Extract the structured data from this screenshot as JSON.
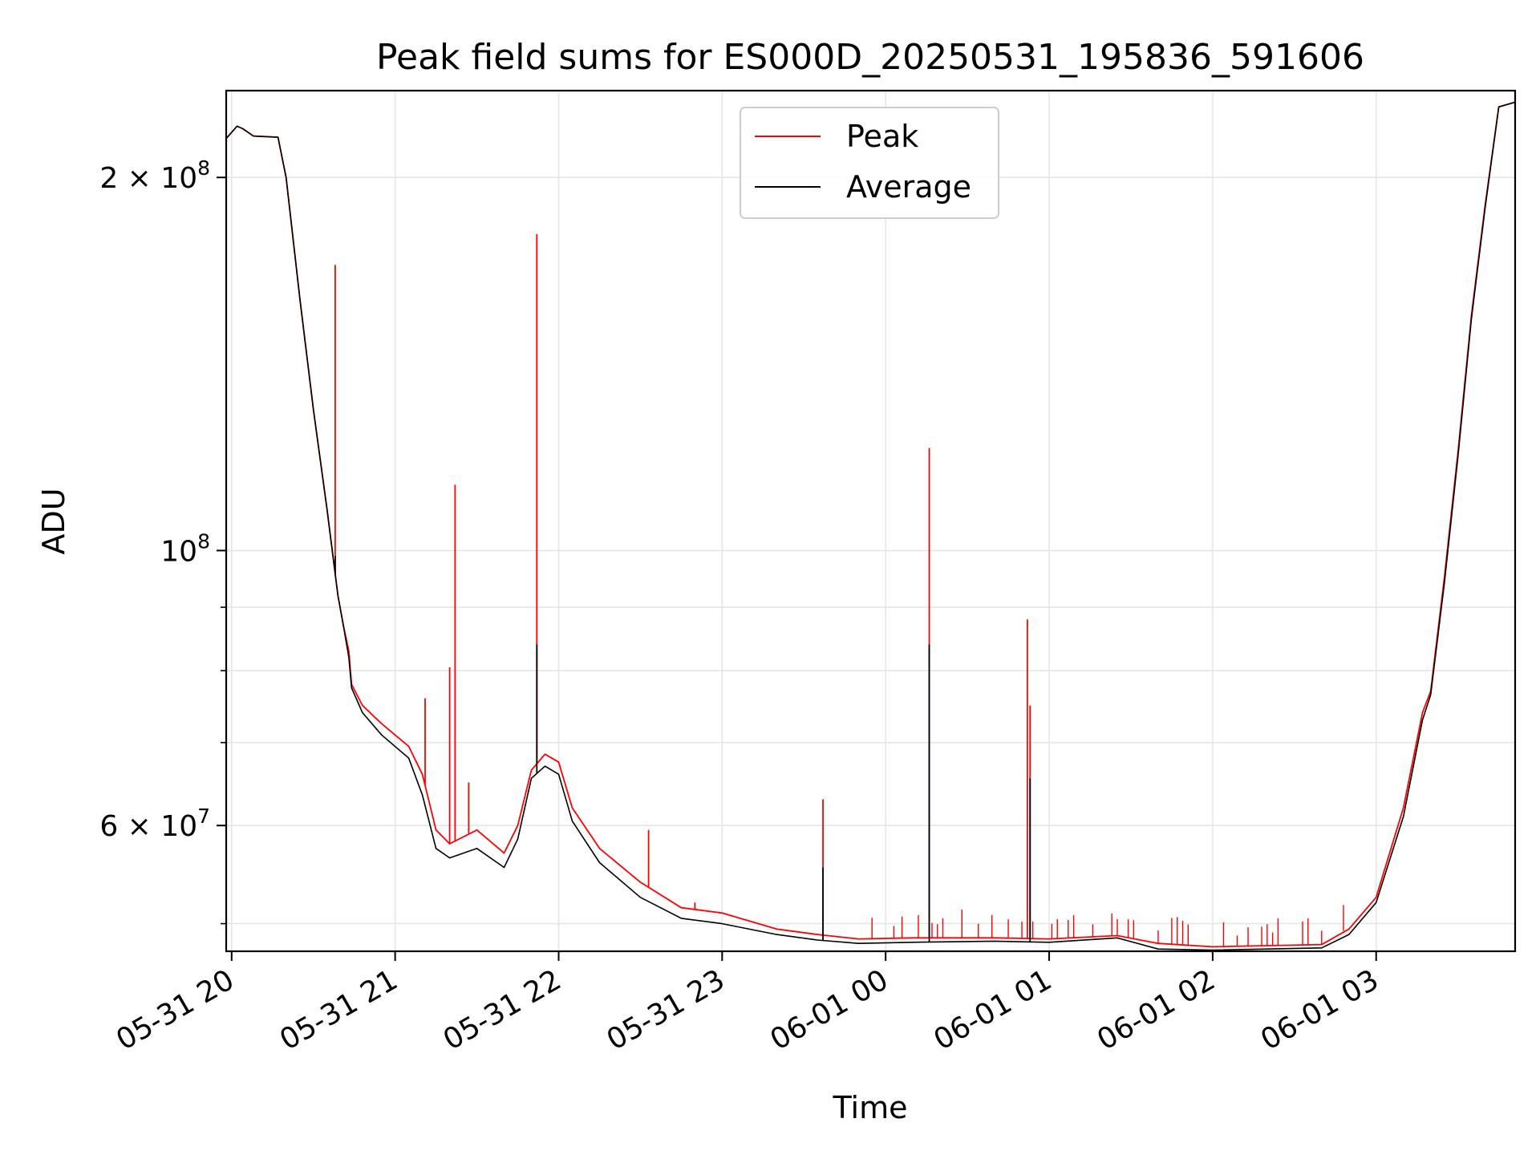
{
  "chart_data": {
    "type": "line",
    "title": "Peak field sums for ES000D_20250531_195836_591606",
    "xlabel": "Time",
    "ylabel": "ADU",
    "y_scale": "log",
    "grid": true,
    "legend_placement": "upper center",
    "xlim": [
      "2025-05-31 19:58",
      "2025-06-01 03:51"
    ],
    "ylim": [
      47500000,
      235000000
    ],
    "x_ticks": [
      {
        "t": "2025-05-31 20:00",
        "label": "05-31 20"
      },
      {
        "t": "2025-05-31 21:00",
        "label": "05-31 21"
      },
      {
        "t": "2025-05-31 22:00",
        "label": "05-31 22"
      },
      {
        "t": "2025-05-31 23:00",
        "label": "05-31 23"
      },
      {
        "t": "2025-06-01 00:00",
        "label": "06-01 00"
      },
      {
        "t": "2025-06-01 01:00",
        "label": "06-01 01"
      },
      {
        "t": "2025-06-01 02:00",
        "label": "06-01 02"
      },
      {
        "t": "2025-06-01 03:00",
        "label": "06-01 03"
      }
    ],
    "y_ticks_major": [
      {
        "v": 200000000,
        "base": "2 × 10",
        "exp": "8"
      },
      {
        "v": 100000000,
        "base": "10",
        "exp": "8"
      },
      {
        "v": 60000000,
        "base": "6 × 10",
        "exp": "7"
      }
    ],
    "y_ticks_minor": [
      50000000,
      70000000,
      80000000,
      90000000
    ],
    "series": [
      {
        "name": "Peak",
        "color": "#ff0000",
        "points": [
          [
            "2025-05-31 19:58",
            215000000
          ],
          [
            "2025-05-31 20:02",
            220000000
          ],
          [
            "2025-05-31 20:04",
            219000000
          ],
          [
            "2025-05-31 20:08",
            216000000
          ],
          [
            "2025-05-31 20:17",
            215500000
          ],
          [
            "2025-05-31 20:20",
            200000000
          ],
          [
            "2025-05-31 20:25",
            160000000
          ],
          [
            "2025-05-31 20:30",
            130000000
          ],
          [
            "2025-05-31 20:35",
            108000000
          ],
          [
            "2025-05-31 20:39",
            92000000
          ],
          [
            "2025-05-31 20:41",
            87000000
          ],
          [
            "2025-05-31 20:43",
            83000000
          ],
          [
            "2025-05-31 20:44",
            78000000
          ],
          [
            "2025-05-31 20:48",
            75000000
          ],
          [
            "2025-05-31 20:55",
            72500000
          ],
          [
            "2025-05-31 21:05",
            69500000
          ],
          [
            "2025-05-31 21:10",
            66000000
          ],
          [
            "2025-05-31 21:15",
            59500000
          ],
          [
            "2025-05-31 21:20",
            58000000
          ],
          [
            "2025-05-31 21:30",
            59500000
          ],
          [
            "2025-05-31 21:40",
            57000000
          ],
          [
            "2025-05-31 21:45",
            60000000
          ],
          [
            "2025-05-31 21:50",
            66500000
          ],
          [
            "2025-05-31 21:55",
            68500000
          ],
          [
            "2025-05-31 22:00",
            67500000
          ],
          [
            "2025-05-31 22:05",
            62000000
          ],
          [
            "2025-05-31 22:15",
            57500000
          ],
          [
            "2025-05-31 22:30",
            54000000
          ],
          [
            "2025-05-31 22:45",
            51500000
          ],
          [
            "2025-05-31 23:00",
            51000000
          ],
          [
            "2025-05-31 23:20",
            49500000
          ],
          [
            "2025-05-31 23:35",
            49000000
          ],
          [
            "2025-05-31 23:50",
            48600000
          ],
          [
            "2025-06-01 00:10",
            48700000
          ],
          [
            "2025-06-01 00:40",
            48700000
          ],
          [
            "2025-06-01 01:00",
            48600000
          ],
          [
            "2025-06-01 01:25",
            48900000
          ],
          [
            "2025-06-01 01:40",
            48200000
          ],
          [
            "2025-06-01 02:00",
            47900000
          ],
          [
            "2025-06-01 02:40",
            48100000
          ],
          [
            "2025-06-01 02:50",
            49500000
          ],
          [
            "2025-06-01 03:00",
            52500000
          ],
          [
            "2025-06-01 03:10",
            62000000
          ],
          [
            "2025-06-01 03:17",
            74000000
          ],
          [
            "2025-06-01 03:20",
            77000000
          ],
          [
            "2025-06-01 03:25",
            95000000
          ],
          [
            "2025-06-01 03:30",
            120000000
          ],
          [
            "2025-06-01 03:35",
            155000000
          ],
          [
            "2025-06-01 03:40",
            190000000
          ],
          [
            "2025-06-01 03:45",
            228000000
          ],
          [
            "2025-06-01 03:51",
            230000000
          ]
        ],
        "spikes": [
          [
            "2025-05-31 20:38",
            170000000
          ],
          [
            "2025-05-31 21:11",
            76000000
          ],
          [
            "2025-05-31 21:20",
            80500000
          ],
          [
            "2025-05-31 21:22",
            113000000
          ],
          [
            "2025-05-31 21:27",
            65000000
          ],
          [
            "2025-05-31 21:52",
            180000000
          ],
          [
            "2025-05-31 22:33",
            59500000
          ],
          [
            "2025-05-31 22:50",
            52000000
          ],
          [
            "2025-05-31 23:37",
            63000000
          ],
          [
            "2025-06-01 00:16",
            121000000
          ],
          [
            "2025-06-01 00:52",
            88000000
          ],
          [
            "2025-06-01 00:53",
            75000000
          ]
        ]
      },
      {
        "name": "Average",
        "color": "#000000",
        "points": [
          [
            "2025-05-31 19:58",
            215000000
          ],
          [
            "2025-05-31 20:02",
            220000000
          ],
          [
            "2025-05-31 20:04",
            219000000
          ],
          [
            "2025-05-31 20:08",
            216000000
          ],
          [
            "2025-05-31 20:17",
            215500000
          ],
          [
            "2025-05-31 20:20",
            200000000
          ],
          [
            "2025-05-31 20:25",
            160000000
          ],
          [
            "2025-05-31 20:30",
            130000000
          ],
          [
            "2025-05-31 20:35",
            108000000
          ],
          [
            "2025-05-31 20:39",
            92000000
          ],
          [
            "2025-05-31 20:41",
            87000000
          ],
          [
            "2025-05-31 20:43",
            82000000
          ],
          [
            "2025-05-31 20:44",
            77500000
          ],
          [
            "2025-05-31 20:48",
            74000000
          ],
          [
            "2025-05-31 20:55",
            71000000
          ],
          [
            "2025-05-31 21:05",
            68000000
          ],
          [
            "2025-05-31 21:10",
            63500000
          ],
          [
            "2025-05-31 21:15",
            57500000
          ],
          [
            "2025-05-31 21:20",
            56500000
          ],
          [
            "2025-05-31 21:30",
            57500000
          ],
          [
            "2025-05-31 21:40",
            55500000
          ],
          [
            "2025-05-31 21:45",
            58500000
          ],
          [
            "2025-05-31 21:50",
            65500000
          ],
          [
            "2025-05-31 21:55",
            67000000
          ],
          [
            "2025-05-31 22:00",
            66000000
          ],
          [
            "2025-05-31 22:05",
            60500000
          ],
          [
            "2025-05-31 22:15",
            56000000
          ],
          [
            "2025-05-31 22:30",
            52500000
          ],
          [
            "2025-05-31 22:45",
            50500000
          ],
          [
            "2025-05-31 23:00",
            50000000
          ],
          [
            "2025-05-31 23:20",
            49000000
          ],
          [
            "2025-05-31 23:35",
            48500000
          ],
          [
            "2025-05-31 23:50",
            48200000
          ],
          [
            "2025-06-01 00:10",
            48300000
          ],
          [
            "2025-06-01 00:40",
            48400000
          ],
          [
            "2025-06-01 01:00",
            48300000
          ],
          [
            "2025-06-01 01:25",
            48700000
          ],
          [
            "2025-06-01 01:40",
            47700000
          ],
          [
            "2025-06-01 02:00",
            47600000
          ],
          [
            "2025-06-01 02:40",
            47800000
          ],
          [
            "2025-06-01 02:50",
            49000000
          ],
          [
            "2025-06-01 03:00",
            52000000
          ],
          [
            "2025-06-01 03:10",
            61000000
          ],
          [
            "2025-06-01 03:17",
            73000000
          ],
          [
            "2025-06-01 03:20",
            76500000
          ],
          [
            "2025-06-01 03:25",
            94000000
          ],
          [
            "2025-06-01 03:30",
            119000000
          ],
          [
            "2025-06-01 03:35",
            154000000
          ],
          [
            "2025-06-01 03:40",
            189000000
          ],
          [
            "2025-06-01 03:45",
            228000000
          ],
          [
            "2025-06-01 03:51",
            230000000
          ]
        ],
        "spikes": [
          [
            "2025-05-31 20:38",
            99000000
          ],
          [
            "2025-05-31 21:52",
            84000000
          ],
          [
            "2025-05-31 23:37",
            55500000
          ],
          [
            "2025-06-01 00:16",
            84000000
          ],
          [
            "2025-06-01 00:53",
            65500000
          ]
        ]
      }
    ]
  }
}
